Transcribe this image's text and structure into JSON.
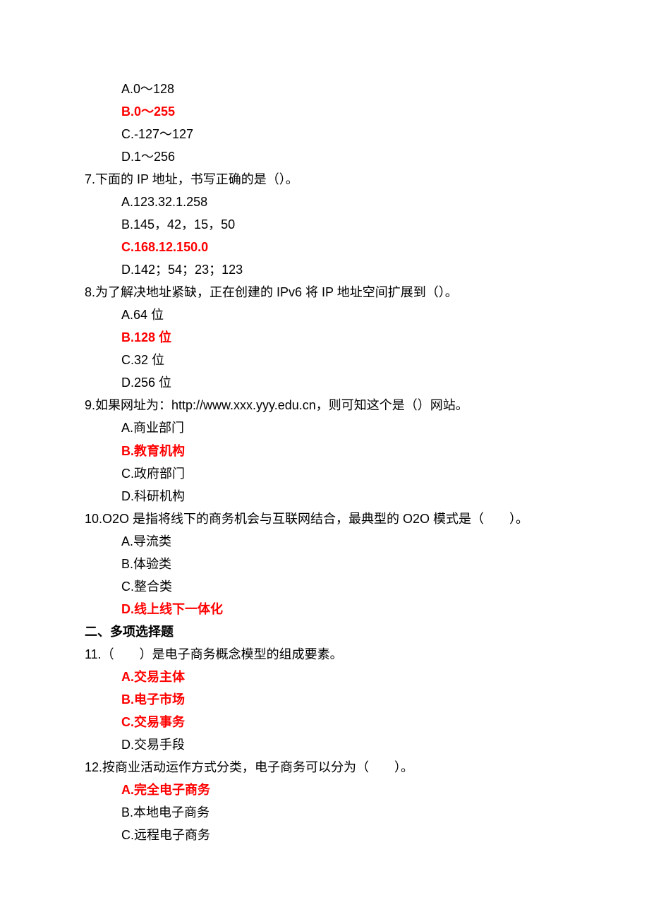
{
  "colors": {
    "text": "#000000",
    "highlight": "#ff0000",
    "background": "#ffffff"
  },
  "typography": {
    "font_family": "Microsoft YaHei / SimSun",
    "base_size_pt": 14,
    "line_height": 1.78
  },
  "content": {
    "q6_opts": {
      "a": "A.0～128",
      "b": "B.0～255",
      "c": "C.-127～127",
      "d": "D.1～256"
    },
    "q7": {
      "stem": "7.下面的 IP 地址，书写正确的是（）。",
      "a": "A.123.32.1.258",
      "b": "B.145，42，15，50",
      "c": "C.168.12.150.0",
      "d": "D.142；54；23；123"
    },
    "q8": {
      "stem": "8.为了解决地址紧缺，正在创建的 IPv6 将 IP 地址空间扩展到（）。",
      "a": "A.64 位",
      "b": "B.128 位",
      "c": "C.32 位",
      "d": "D.256 位"
    },
    "q9": {
      "stem": "9.如果网址为：http://www.xxx.yyy.edu.cn，则可知这个是（）网站。",
      "a": "A.商业部门",
      "b": "B.教育机构",
      "c": "C.政府部门",
      "d": "D.科研机构"
    },
    "q10": {
      "stem": "10.O2O 是指将线下的商务机会与互联网结合，最典型的 O2O 模式是（　　）。",
      "a": "A.导流类",
      "b": "B.体验类",
      "c": "C.整合类",
      "d": "D.线上线下一体化"
    },
    "section2": "二、多项选择题",
    "q11": {
      "stem": "11.（　　）是电子商务概念模型的组成要素。",
      "a": "A.交易主体",
      "b": "B.电子市场",
      "c": "C.交易事务",
      "d": "D.交易手段"
    },
    "q12": {
      "stem": "12.按商业活动运作方式分类，电子商务可以分为（　　）。",
      "a": "A.完全电子商务",
      "b": "B.本地电子商务",
      "c": "C.远程电子商务"
    }
  }
}
